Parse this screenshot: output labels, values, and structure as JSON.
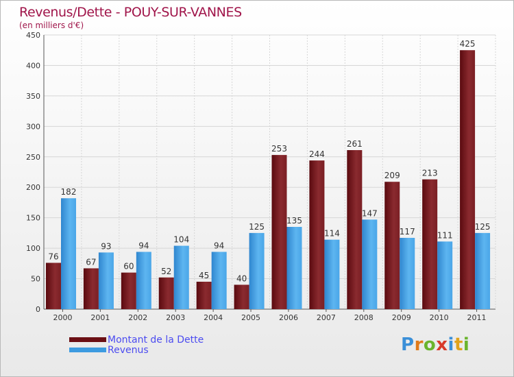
{
  "header": {
    "title": "Revenus/Dette - POUY-SUR-VANNES",
    "subtitle": "(en milliers d'€)"
  },
  "chart_data": {
    "type": "bar",
    "title": "Revenus/Dette - POUY-SUR-VANNES",
    "ylabel": "(en milliers d'€)",
    "xlabel": "",
    "ylim": [
      0,
      450
    ],
    "yticks": [
      0,
      50,
      100,
      150,
      200,
      250,
      300,
      350,
      400,
      450
    ],
    "grid": true,
    "categories": [
      "2000",
      "2001",
      "2002",
      "2003",
      "2004",
      "2005",
      "2006",
      "2007",
      "2008",
      "2009",
      "2010",
      "2011"
    ],
    "series": [
      {
        "name": "Montant de la Dette",
        "color": "#7a1a1f",
        "values": [
          76,
          67,
          60,
          52,
          45,
          40,
          253,
          244,
          261,
          209,
          213,
          425
        ]
      },
      {
        "name": "Revenus",
        "color": "#4aa8ea",
        "values": [
          182,
          93,
          94,
          104,
          94,
          125,
          135,
          114,
          147,
          117,
          111,
          125
        ]
      }
    ],
    "legend_position": "bottom-left"
  },
  "legend": {
    "items": [
      {
        "label": "Montant de la Dette",
        "color": "#6b0f14"
      },
      {
        "label": "Revenus",
        "color": "#3d9be0"
      }
    ]
  },
  "logo": {
    "letters": [
      {
        "ch": "P",
        "color": "#3a8fd8"
      },
      {
        "ch": "r",
        "color": "#e07a1a"
      },
      {
        "ch": "o",
        "color": "#6ab42d"
      },
      {
        "ch": "x",
        "color": "#d83a2a"
      },
      {
        "ch": "i",
        "color": "#3a8fd8"
      },
      {
        "ch": "t",
        "color": "#e0a21a"
      },
      {
        "ch": "i",
        "color": "#6ab42d"
      }
    ]
  }
}
